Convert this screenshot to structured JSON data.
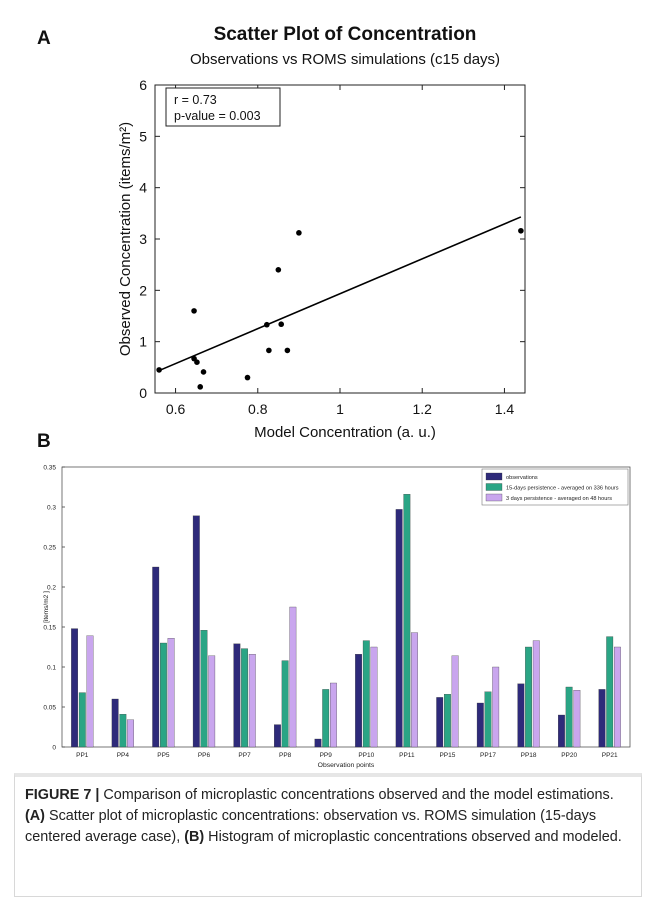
{
  "panels": {
    "a_letter": "A",
    "b_letter": "B"
  },
  "caption": {
    "figure_label": "FIGURE 7 |",
    "lead": " Comparison of microplastic concentrations observed and the model estimations. ",
    "ref_a": "(A)",
    "text_a": " Scatter plot of microplastic concentrations: observation vs. ROMS simulation (15-days centered average case), ",
    "ref_b": "(B)",
    "text_b": " Histogram of microplastic concentrations observed and modeled."
  },
  "chart_data": [
    {
      "type": "scatter",
      "title": "Scatter Plot of Concentration",
      "subtitle": "Observations vs ROMS simulations (c15 days)",
      "xlabel": "Model Concentration  (a. u.)",
      "ylabel": "Observed Concentration  (items/m²)",
      "xlim": [
        0.55,
        1.45
      ],
      "ylim": [
        0,
        6
      ],
      "xticks": [
        0.6,
        0.8,
        1,
        1.2,
        1.4
      ],
      "xtick_labels": [
        "0.6",
        "0.8",
        "1",
        "1.2",
        "1.4"
      ],
      "yticks": [
        0,
        1,
        2,
        3,
        4,
        5,
        6
      ],
      "ytick_labels": [
        "0",
        "1",
        "2",
        "3",
        "4",
        "5",
        "6"
      ],
      "annotation": [
        "r       = 0.73",
        "p-value = 0.003"
      ],
      "points": [
        {
          "x": 0.56,
          "y": 0.45
        },
        {
          "x": 0.645,
          "y": 1.6
        },
        {
          "x": 0.645,
          "y": 0.67
        },
        {
          "x": 0.652,
          "y": 0.6
        },
        {
          "x": 0.66,
          "y": 0.12
        },
        {
          "x": 0.668,
          "y": 0.41
        },
        {
          "x": 0.775,
          "y": 0.3
        },
        {
          "x": 0.822,
          "y": 1.33
        },
        {
          "x": 0.827,
          "y": 0.83
        },
        {
          "x": 0.85,
          "y": 2.4
        },
        {
          "x": 0.857,
          "y": 1.34
        },
        {
          "x": 0.872,
          "y": 0.83
        },
        {
          "x": 0.9,
          "y": 3.12
        },
        {
          "x": 1.44,
          "y": 3.16
        }
      ],
      "fit_line": {
        "x": [
          0.555,
          1.44
        ],
        "y": [
          0.42,
          3.43
        ]
      },
      "colors": {
        "points": "#000000",
        "line": "#000000"
      }
    },
    {
      "type": "bar",
      "xlabel": "Observation points",
      "ylabel": "[items/m2 ]",
      "ylim": [
        0,
        0.35
      ],
      "yticks": [
        0,
        0.05,
        0.1,
        0.15,
        0.2,
        0.25,
        0.3,
        0.35
      ],
      "ytick_labels": [
        "0",
        "0.05",
        "0.1",
        "0.15",
        "0.2",
        "0.25",
        "0.3",
        "0.35"
      ],
      "categories": [
        "PP1",
        "PP4",
        "PP5",
        "PP6",
        "PP7",
        "PP8",
        "PP9",
        "PP10",
        "PP11",
        "PP15",
        "PP17",
        "PP18",
        "PP20",
        "PP21"
      ],
      "legend_position": "top-right",
      "series": [
        {
          "name": "observations",
          "color": "#2e2a7a",
          "values": [
            0.148,
            0.06,
            0.225,
            0.289,
            0.129,
            0.028,
            0.01,
            0.116,
            0.297,
            0.062,
            0.055,
            0.079,
            0.04,
            0.072
          ]
        },
        {
          "name": "15-days persistence - averaged on 336 hours",
          "color": "#2aa585",
          "values": [
            0.068,
            0.041,
            0.13,
            0.146,
            0.123,
            0.108,
            0.072,
            0.133,
            0.316,
            0.066,
            0.069,
            0.125,
            0.075,
            0.138
          ]
        },
        {
          "name": "3 days persistence - averaged on 48 hours",
          "color": "#c9a6ee",
          "values": [
            0.139,
            0.034,
            0.136,
            0.114,
            0.116,
            0.175,
            0.08,
            0.125,
            0.143,
            0.114,
            0.1,
            0.133,
            0.071,
            0.125
          ]
        }
      ]
    }
  ]
}
